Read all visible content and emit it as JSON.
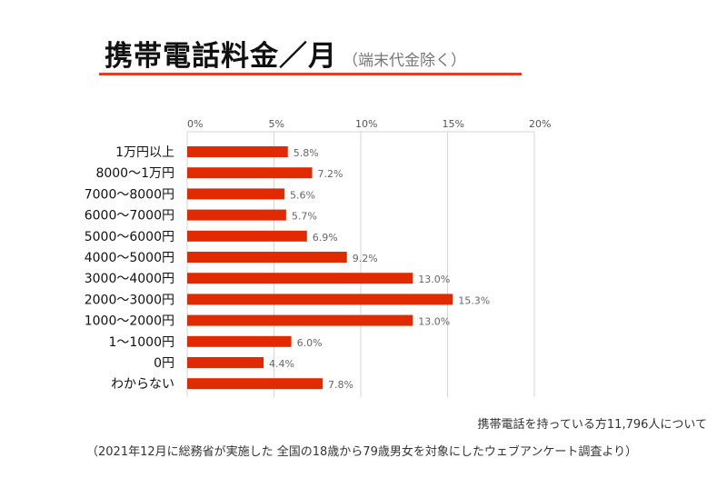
{
  "header": {
    "title": "携帯電話料金／月",
    "subtitle": "（端末代金除く）"
  },
  "chart_data": {
    "type": "bar",
    "orientation": "horizontal",
    "categories": [
      "1万円以上",
      "8000〜1万円",
      "7000〜8000円",
      "6000〜7000円",
      "5000〜6000円",
      "4000〜5000円",
      "3000〜4000円",
      "2000〜3000円",
      "1000〜2000円",
      "1〜1000円",
      "0円",
      "わからない"
    ],
    "values": [
      5.8,
      7.2,
      5.6,
      5.7,
      6.9,
      9.2,
      13.0,
      15.3,
      13.0,
      6.0,
      4.4,
      7.8
    ],
    "value_labels": [
      "5.8%",
      "7.2%",
      "5.6%",
      "5.7%",
      "6.9%",
      "9.2%",
      "13.0%",
      "15.3%",
      "13.0%",
      "6.0%",
      "4.4%",
      "7.8%"
    ],
    "xticks": [
      0,
      5,
      10,
      15,
      20
    ],
    "xtick_labels": [
      "0%",
      "5%",
      "10%",
      "15%",
      "20%"
    ],
    "xlim": [
      0,
      20
    ],
    "grid": true,
    "bar_color": "#e22a00"
  },
  "footer": {
    "sample_note": "携帯電話を持っている方11,796人について",
    "source_note": "（2021年12月に総務省が実施した 全国の18歳から79歳男女を対象にしたウェブアンケート調査より）"
  }
}
